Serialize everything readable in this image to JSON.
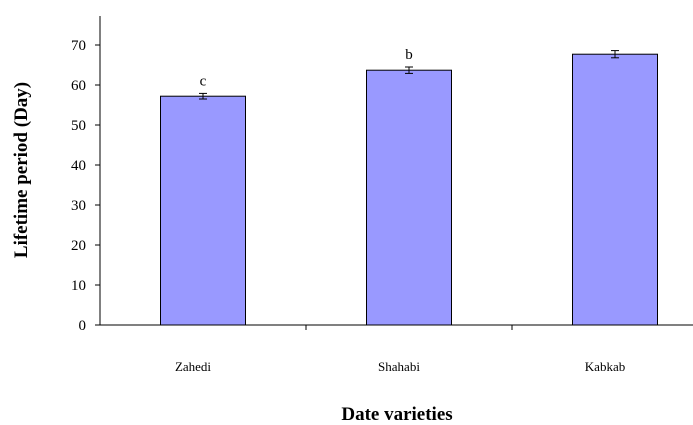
{
  "chart_data": {
    "type": "bar",
    "title": "",
    "xlabel": "Date varieties",
    "ylabel": "Lifetime period (Day)",
    "categories": [
      "Zahedi",
      "Shahabi",
      "Kabkab"
    ],
    "values": [
      57.2,
      63.7,
      67.7
    ],
    "error": [
      0.7,
      0.8,
      0.9
    ],
    "significance_labels": [
      "c",
      "b",
      ""
    ],
    "ylim": [
      0,
      70
    ],
    "yticks": [
      0,
      10,
      20,
      30,
      40,
      50,
      60,
      70
    ],
    "grid": false,
    "legend": "none",
    "colors": {
      "bar_fill": "#9999ff",
      "bar_stroke": "#000000"
    }
  }
}
